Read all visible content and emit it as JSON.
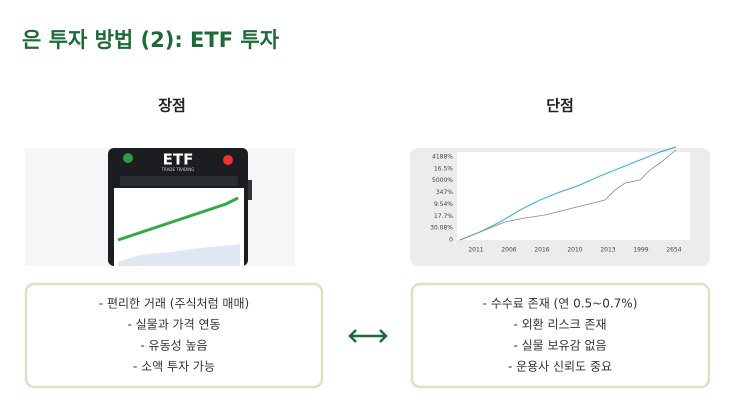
{
  "header": {
    "title": "은 투자 방법 (2): ETF 투자"
  },
  "pros": {
    "heading": "장점",
    "items": [
      "- 편리한 거래 (주식처럼 매매)",
      "- 실물과 가격 연동",
      "- 유동성 높음",
      "- 소액 투자 가능"
    ]
  },
  "cons": {
    "heading": "단점",
    "items": [
      "- 수수료 존재 (연 0.5~0.7%)",
      "- 외환 리스크 존재",
      "- 실물 보유감 없음",
      "- 운용사 신뢰도 중요"
    ]
  },
  "left_image": {
    "logo": "ETF",
    "tagline": "TRADE TRADING"
  },
  "right_image": {
    "y_labels": [
      "4188%",
      "16.5%",
      "5000%",
      "347%",
      "9.54%",
      "17.7%",
      "30.08%",
      "0"
    ],
    "x_labels": [
      "2011",
      "2006",
      "2016",
      "2010",
      "2013",
      "1999",
      "2654"
    ]
  }
}
